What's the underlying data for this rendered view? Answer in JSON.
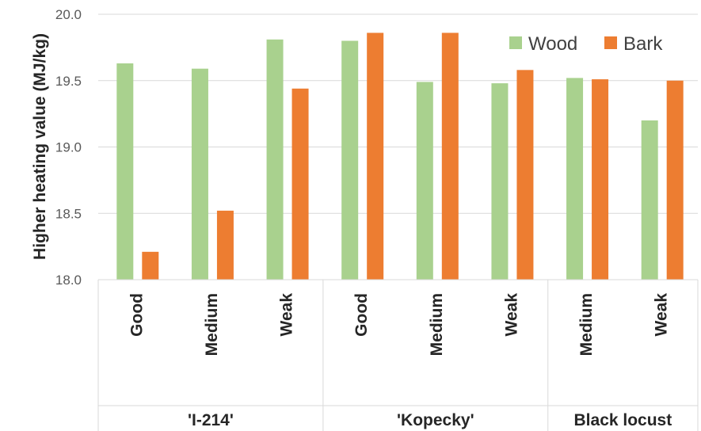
{
  "chart_data": {
    "type": "bar",
    "ylabel": "Higher heating value (MJ/kg)",
    "ylim": [
      18.0,
      20.0
    ],
    "yticks": [
      "18.0",
      "18.5",
      "19.0",
      "19.5",
      "20.0"
    ],
    "grid": true,
    "legend_position": "top-right",
    "groups": [
      {
        "label": "'I-214'",
        "categories": [
          "Good",
          "Medium",
          "Weak"
        ]
      },
      {
        "label": "'Kopecky'",
        "categories": [
          "Good",
          "Medium",
          "Weak"
        ]
      },
      {
        "label": "Black locust",
        "categories": [
          "Medium",
          "Weak"
        ]
      }
    ],
    "categories": [
      "Good",
      "Medium",
      "Weak",
      "Good",
      "Medium",
      "Weak",
      "Medium",
      "Weak"
    ],
    "series": [
      {
        "name": "Wood",
        "color": "#a9d18e",
        "values": [
          19.63,
          19.59,
          19.81,
          19.8,
          19.49,
          19.48,
          19.52,
          19.2
        ]
      },
      {
        "name": "Bark",
        "color": "#ed7d31",
        "values": [
          18.21,
          18.52,
          19.44,
          19.86,
          19.86,
          19.58,
          19.51,
          19.5
        ]
      }
    ]
  }
}
